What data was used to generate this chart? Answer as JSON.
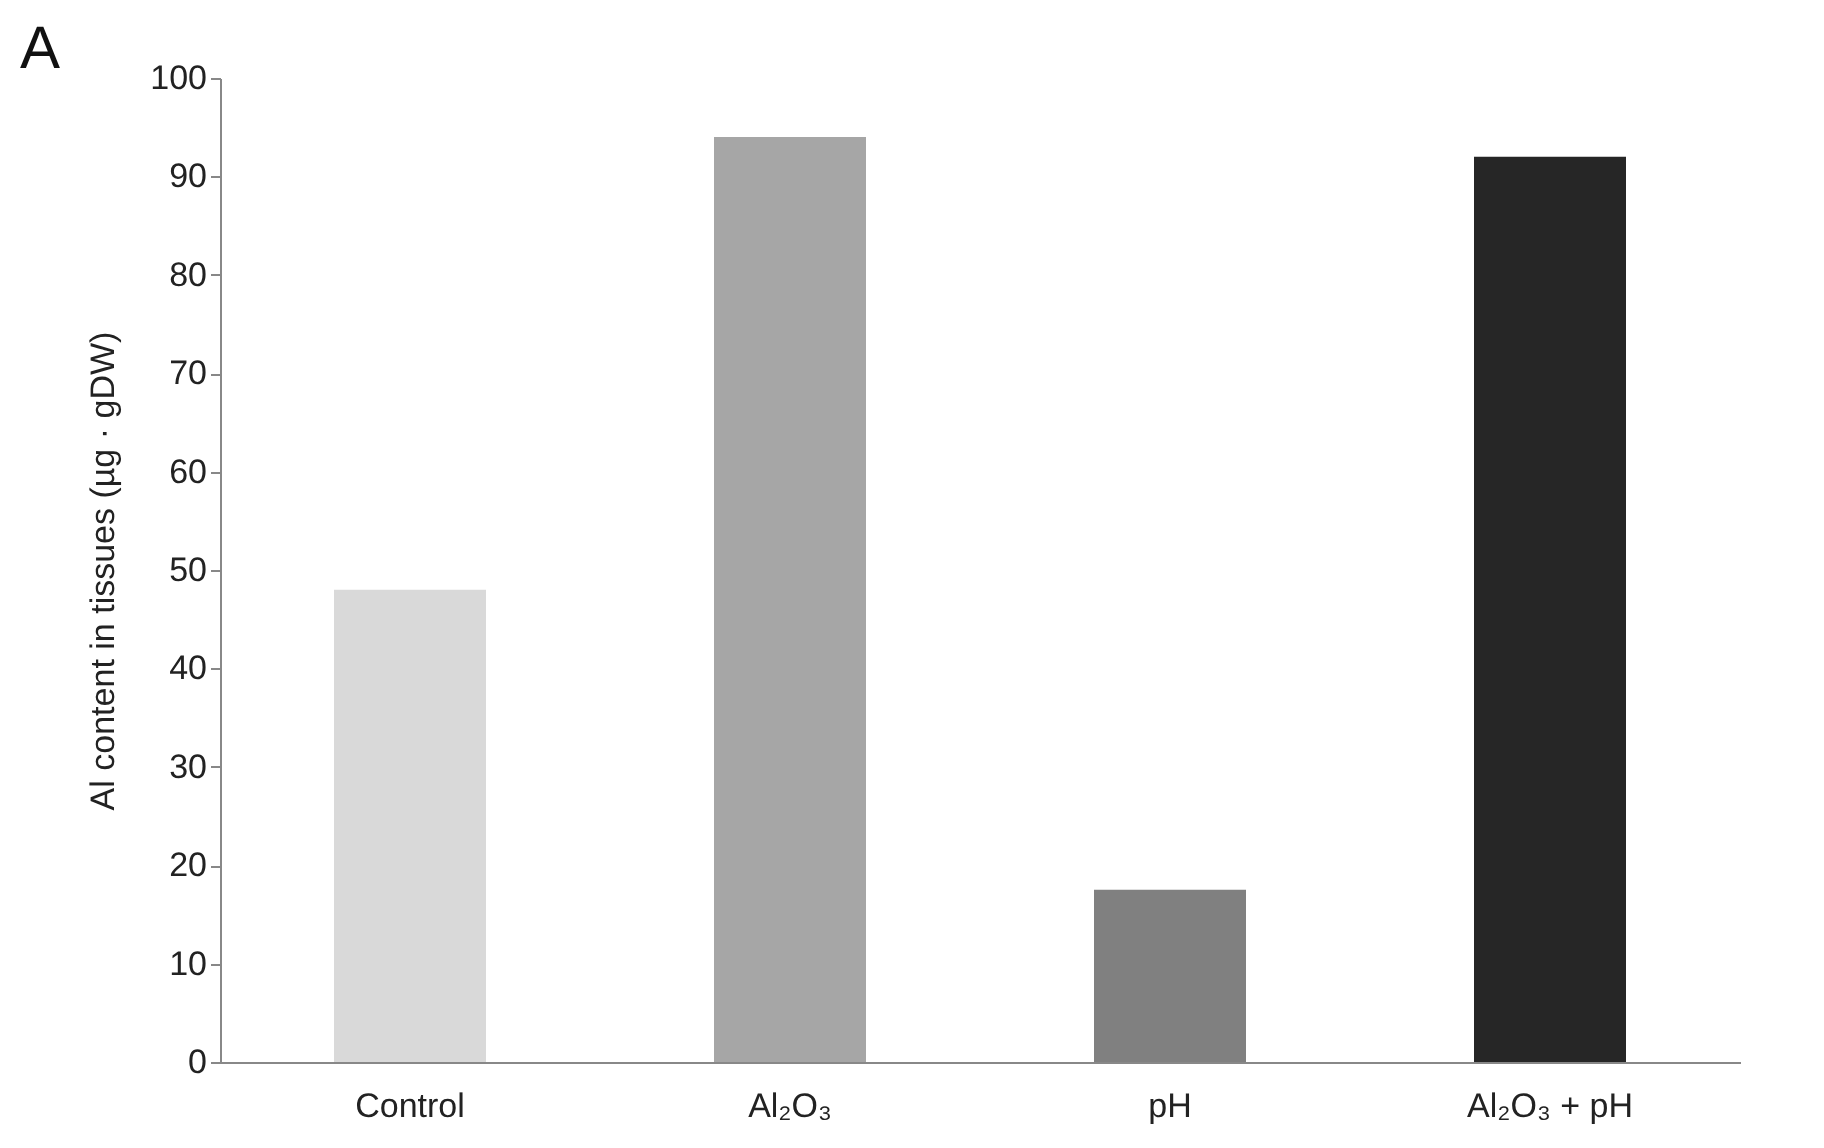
{
  "chart_data": {
    "type": "bar",
    "title": "A",
    "ylabel": "Al content in tissues (µg · gDW)",
    "categories": [
      "Control",
      "Al₂O₃",
      "pH",
      "Al₂O₃ + pH"
    ],
    "values": [
      48,
      94,
      17.5,
      92
    ],
    "colors": [
      "#d9d9d9",
      "#a6a6a6",
      "#808080",
      "#262626"
    ],
    "ylim": [
      0,
      100
    ],
    "yticks": [
      0,
      10,
      20,
      30,
      40,
      50,
      60,
      70,
      80,
      90,
      100
    ],
    "grid": false
  }
}
